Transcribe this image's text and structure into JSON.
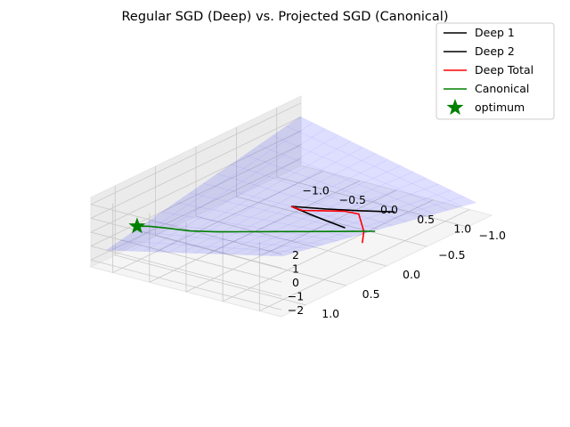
{
  "chart_data": {
    "type": "line",
    "projection": "3d",
    "title": "Regular SGD (Deep) vs. Projected SGD (Canonical)",
    "xlabel": "",
    "ylabel": "",
    "zlabel": "",
    "xlim": [
      -1.3,
      1.3
    ],
    "ylim": [
      -1.3,
      1.3
    ],
    "zlim": [
      -2.5,
      2.5
    ],
    "x_ticks": [
      -1.0,
      -0.5,
      0.0,
      0.5,
      1.0
    ],
    "x_tick_labels": [
      "−1.0",
      "−0.5",
      "0.0",
      "0.5",
      "1.0"
    ],
    "y_ticks": [
      -1.0,
      -0.5,
      0.0,
      0.5,
      1.0
    ],
    "y_tick_labels": [
      "−1.0",
      "−0.5",
      "0.0",
      "0.5",
      "1.0"
    ],
    "z_ticks": [
      -2,
      -1,
      0,
      1,
      2
    ],
    "z_tick_labels": [
      "−2",
      "−1",
      "0",
      "1",
      "2"
    ],
    "grid": true,
    "legend_position": "top-right",
    "surface": {
      "function": "z = x * y",
      "color": "#0000ff",
      "alpha": 0.2
    },
    "series": [
      {
        "name": "Deep 1",
        "color": "#000000",
        "x": [
          0.0,
          0.3,
          0.6,
          0.9
        ],
        "y": [
          0.0,
          0.05,
          0.1,
          0.15
        ],
        "z": [
          0.0,
          0.01,
          0.05,
          0.12
        ]
      },
      {
        "name": "Deep 2",
        "color": "#000000",
        "x": [
          0.0,
          0.25,
          0.5,
          0.75
        ],
        "y": [
          0.0,
          -0.2,
          -0.4,
          -0.6
        ],
        "z": [
          0.0,
          -0.4,
          -0.75,
          -1.05
        ]
      },
      {
        "name": "Deep Total",
        "color": "#ff0000",
        "x": [
          0.0,
          0.15,
          0.3,
          0.5,
          0.7,
          0.9,
          1.1,
          1.3
        ],
        "y": [
          0.0,
          0.0,
          -0.1,
          -0.2,
          -0.2,
          -0.05,
          0.1,
          0.3
        ],
        "z": [
          0.0,
          -0.08,
          -0.18,
          -0.22,
          -0.14,
          -0.05,
          0.0,
          0.0
        ]
      },
      {
        "name": "Canonical",
        "color": "#008000",
        "x": [
          -1.0,
          -0.9,
          -0.7,
          -0.45,
          -0.2,
          0.0,
          0.2,
          0.4,
          0.6,
          0.8,
          1.0,
          1.2
        ],
        "y": [
          1.0,
          0.95,
          0.9,
          0.85,
          0.75,
          0.65,
          0.55,
          0.45,
          0.35,
          0.25,
          0.15,
          0.05
        ],
        "z": [
          0.0,
          0.0,
          0.0,
          0.0,
          0.0,
          0.0,
          0.0,
          0.0,
          0.0,
          0.0,
          0.0,
          0.0
        ]
      }
    ],
    "optimum": {
      "name": "optimum",
      "color": "#008000",
      "marker": "star",
      "x": -1.0,
      "y": 1.0,
      "z": 0.0
    }
  }
}
